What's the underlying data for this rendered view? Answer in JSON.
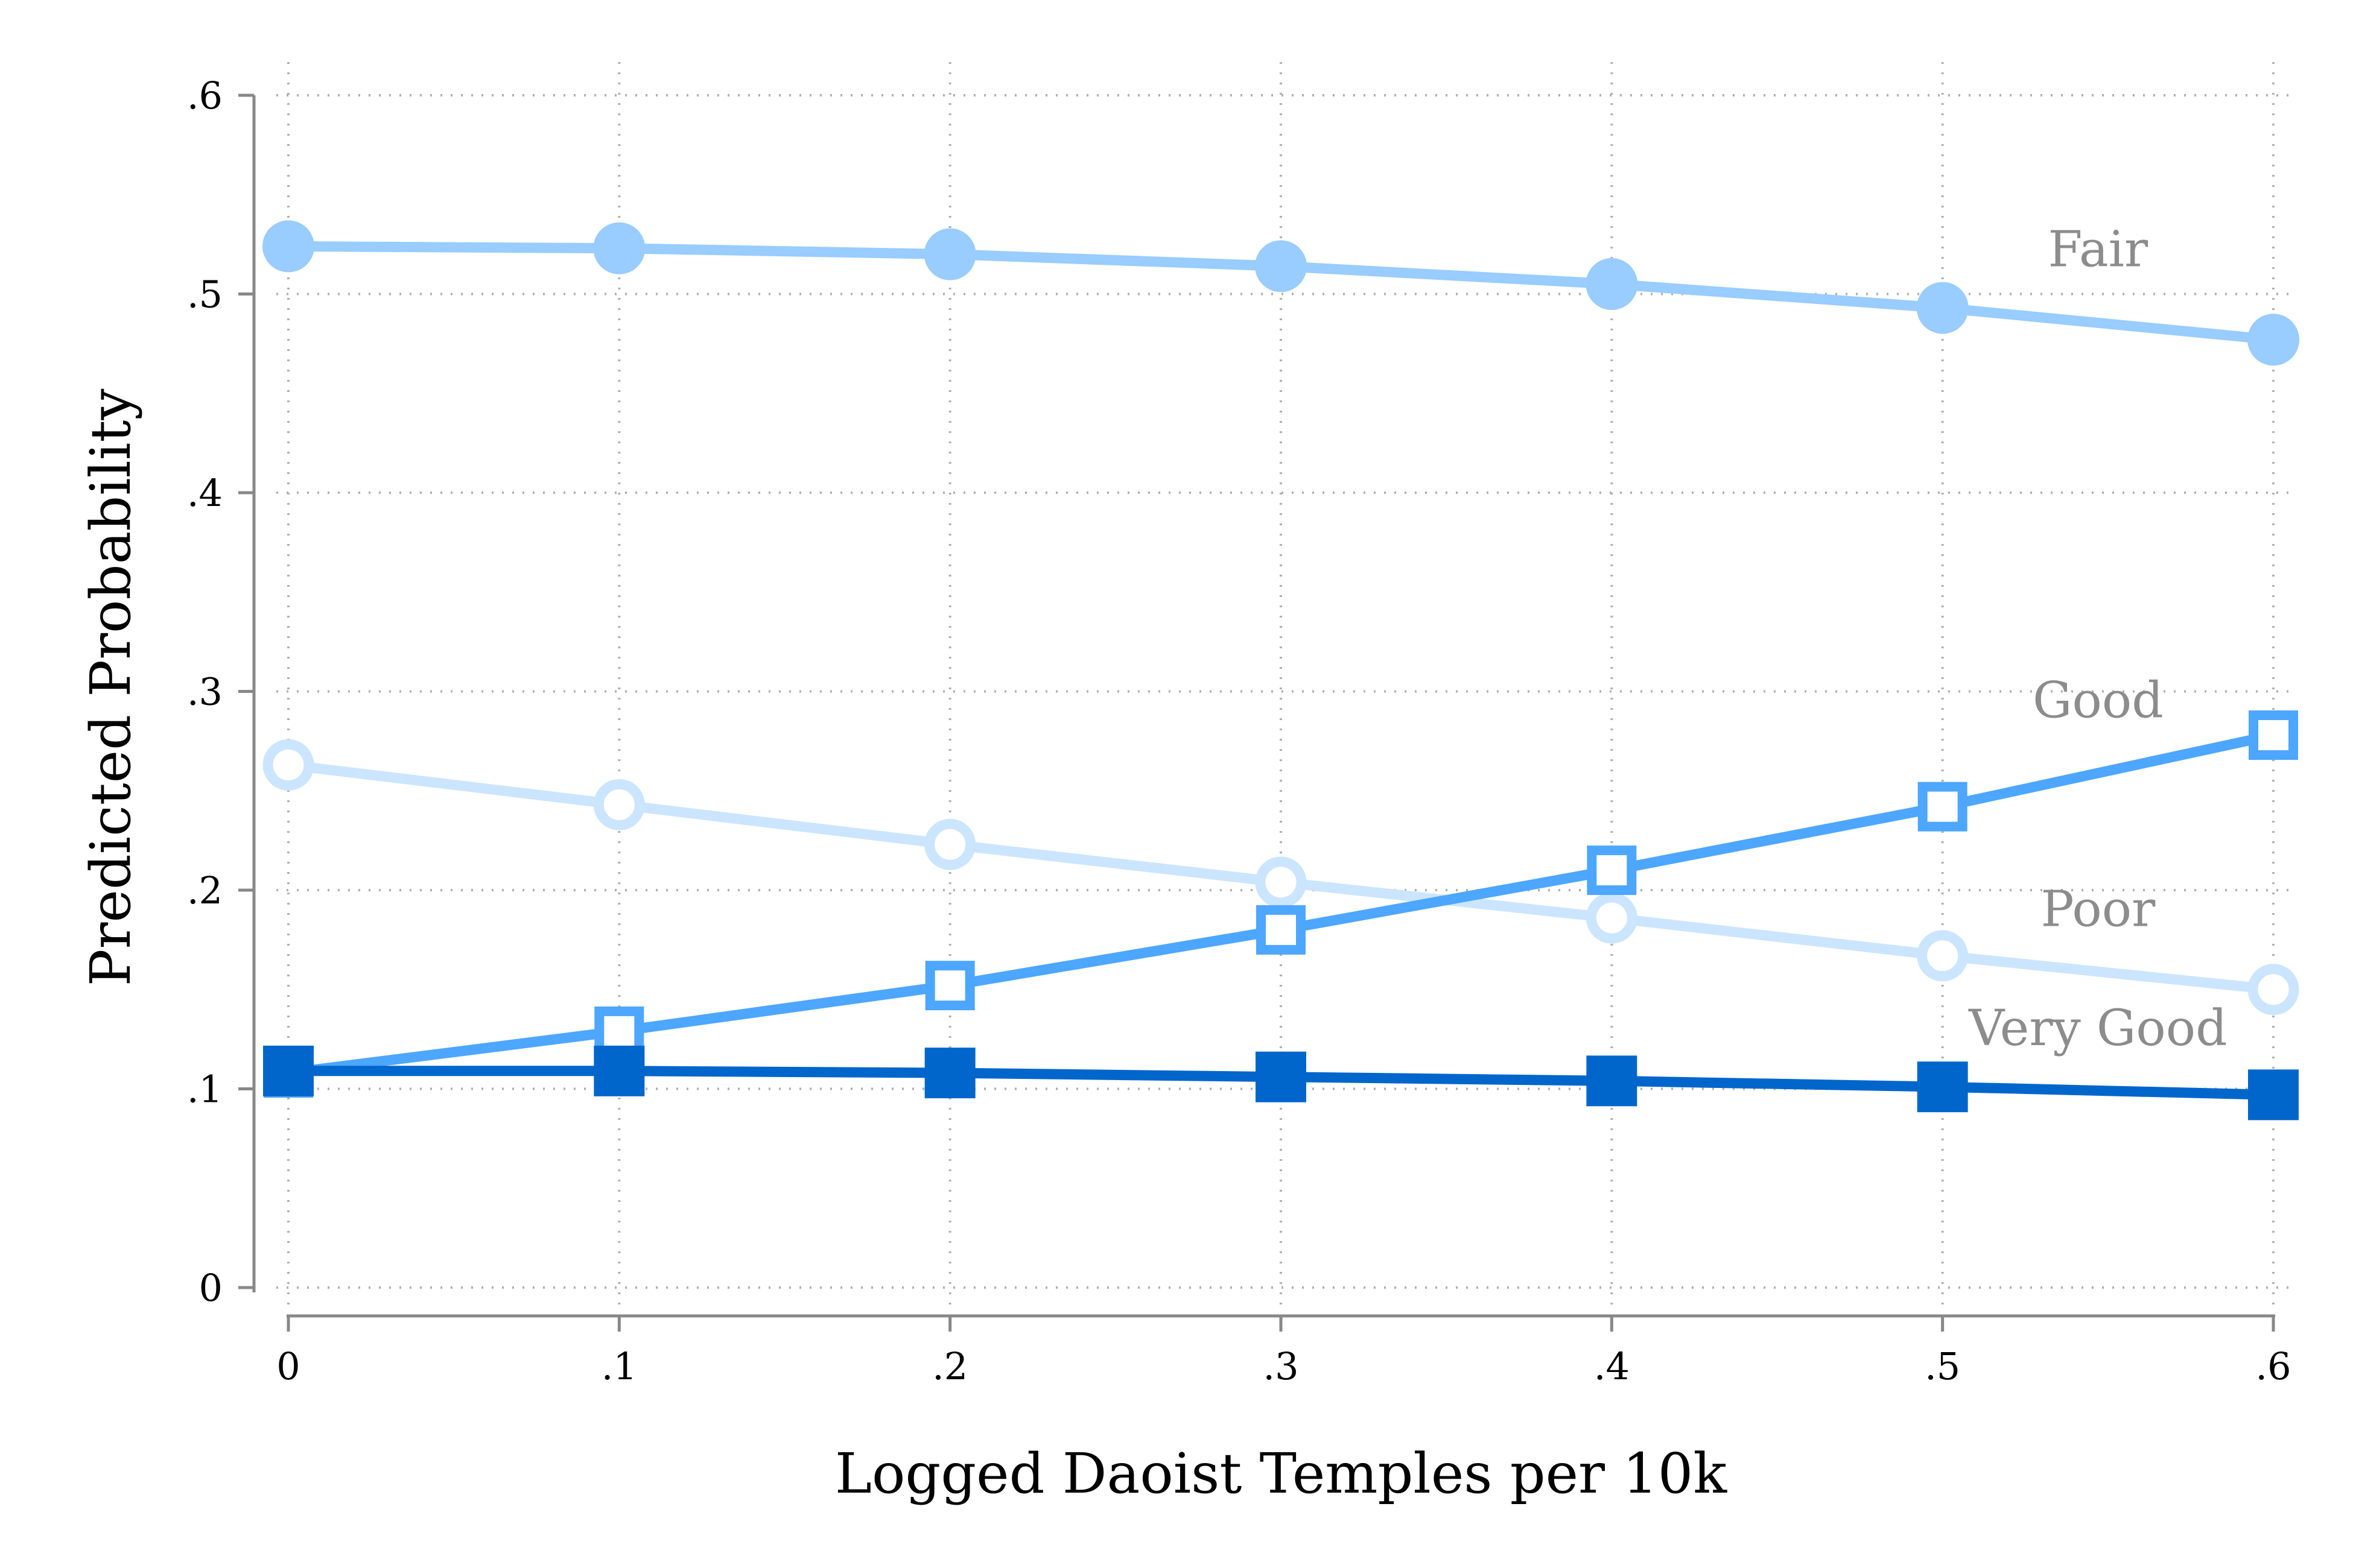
{
  "chart_data": {
    "type": "line",
    "xlabel": "Logged Daoist Temples per 10k",
    "ylabel": "Predicted Probability",
    "xlim": [
      0,
      0.6
    ],
    "ylim": [
      0,
      0.6
    ],
    "x": [
      0,
      0.1,
      0.2,
      0.3,
      0.4,
      0.5,
      0.6
    ],
    "x_ticks": [
      {
        "value": 0,
        "label": "0"
      },
      {
        "value": 0.1,
        "label": ".1"
      },
      {
        "value": 0.2,
        "label": ".2"
      },
      {
        "value": 0.3,
        "label": ".3"
      },
      {
        "value": 0.4,
        "label": ".4"
      },
      {
        "value": 0.5,
        "label": ".5"
      },
      {
        "value": 0.6,
        "label": ".6"
      }
    ],
    "y_ticks": [
      {
        "value": 0,
        "label": "0"
      },
      {
        "value": 0.1,
        "label": ".1"
      },
      {
        "value": 0.2,
        "label": ".2"
      },
      {
        "value": 0.3,
        "label": ".3"
      },
      {
        "value": 0.4,
        "label": ".4"
      },
      {
        "value": 0.5,
        "label": ".5"
      },
      {
        "value": 0.6,
        "label": ".6"
      }
    ],
    "grid": true,
    "legend": "none (series labelled inline at right)",
    "series": [
      {
        "name": "Fair",
        "marker": "filled-circle",
        "color": "#99ccff",
        "values": [
          0.524,
          0.523,
          0.52,
          0.514,
          0.505,
          0.493,
          0.477
        ],
        "label_at": [
          0.547,
          0.514
        ]
      },
      {
        "name": "Poor",
        "marker": "hollow-circle",
        "color": "#cce5ff",
        "values": [
          0.263,
          0.243,
          0.223,
          0.204,
          0.186,
          0.167,
          0.15
        ],
        "label_at": [
          0.547,
          0.182
        ]
      },
      {
        "name": "Good",
        "marker": "hollow-square",
        "color": "#4da6ff",
        "values": [
          0.108,
          0.129,
          0.152,
          0.18,
          0.21,
          0.242,
          0.278
        ],
        "label_at": [
          0.547,
          0.287
        ]
      },
      {
        "name": "Very Good",
        "marker": "filled-square",
        "color": "#0066cc",
        "values": [
          0.109,
          0.109,
          0.108,
          0.106,
          0.104,
          0.101,
          0.097
        ],
        "label_at": [
          0.547,
          0.122
        ]
      }
    ],
    "colors": {
      "axis": "#888888",
      "grid": "#b0b0b0",
      "label": "#8c8c8c"
    }
  }
}
